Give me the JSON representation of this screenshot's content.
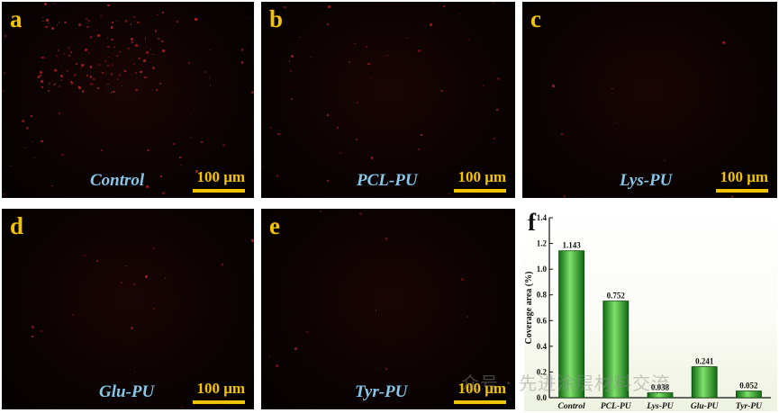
{
  "panels": [
    {
      "letter": "a",
      "label": "Control",
      "scale": "100 μm"
    },
    {
      "letter": "b",
      "label": "PCL-PU",
      "scale": "100 μm"
    },
    {
      "letter": "c",
      "label": "Lys-PU",
      "scale": "100 μm"
    },
    {
      "letter": "d",
      "label": "Glu-PU",
      "scale": "100 μm"
    },
    {
      "letter": "e",
      "label": "Tyr-PU",
      "scale": "100 μm"
    }
  ],
  "chart_panel_letter": "f",
  "watermark": "众号 · 先进涂层材料交流",
  "colors": {
    "panel_letter": "#f2c300",
    "sample_label": "#86c7ea",
    "bar_dark": "#0f6a12",
    "bar_light": "#7fe06a",
    "fluorescence": "#c8201f"
  },
  "chart_data": {
    "type": "bar",
    "categories": [
      "Control",
      "PCL-PU",
      "Lys-PU",
      "Glu-PU",
      "Tyr-PU"
    ],
    "values": [
      1.143,
      0.752,
      0.038,
      0.241,
      0.052
    ],
    "value_labels": [
      "1.143",
      "0.752",
      "0.038",
      "0.241",
      "0.052"
    ],
    "ylabel": "Coverage area (%)",
    "ylim": [
      0,
      1.4
    ],
    "yticks": [
      "0.0",
      "0.2",
      "0.4",
      "0.6",
      "0.8",
      "1.0",
      "1.2",
      "1.4"
    ],
    "grid": false
  }
}
